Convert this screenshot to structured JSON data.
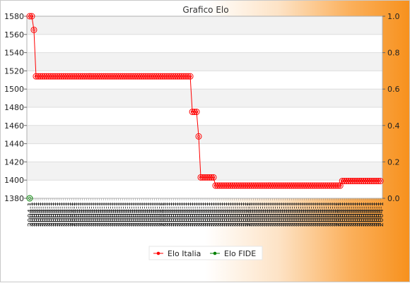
{
  "chart_data": {
    "type": "line",
    "title": "Grafico Elo",
    "y_left": {
      "ylim": [
        1380,
        1580
      ],
      "ticks": [
        "1380",
        "1400",
        "1420",
        "1440",
        "1460",
        "1480",
        "1500",
        "1520",
        "1540",
        "1560",
        "1580"
      ]
    },
    "y_right": {
      "ylim": [
        0.0,
        1.0
      ],
      "ticks": [
        "0.0",
        "0.2",
        "0.4",
        "0.6",
        "0.8",
        "1.0"
      ]
    },
    "x_ticks_note": "2004-1",
    "grid": true,
    "legend_position": "bottom-center",
    "series": [
      {
        "name": "Elo Italia",
        "color": "#ff0000",
        "segments": [
          {
            "value": 1580,
            "count": 2
          },
          {
            "value": 1565,
            "count": 1
          },
          {
            "value": 1514,
            "count": 74
          },
          {
            "value": 1475,
            "count": 3
          },
          {
            "value": 1448,
            "count": 1
          },
          {
            "value": 1403,
            "count": 7
          },
          {
            "value": 1394,
            "count": 60
          },
          {
            "value": 1399,
            "count": 19
          }
        ]
      },
      {
        "name": "Elo FIDE",
        "color": "#008000",
        "segments": [
          {
            "value": 1380,
            "count": 1
          }
        ]
      }
    ]
  }
}
